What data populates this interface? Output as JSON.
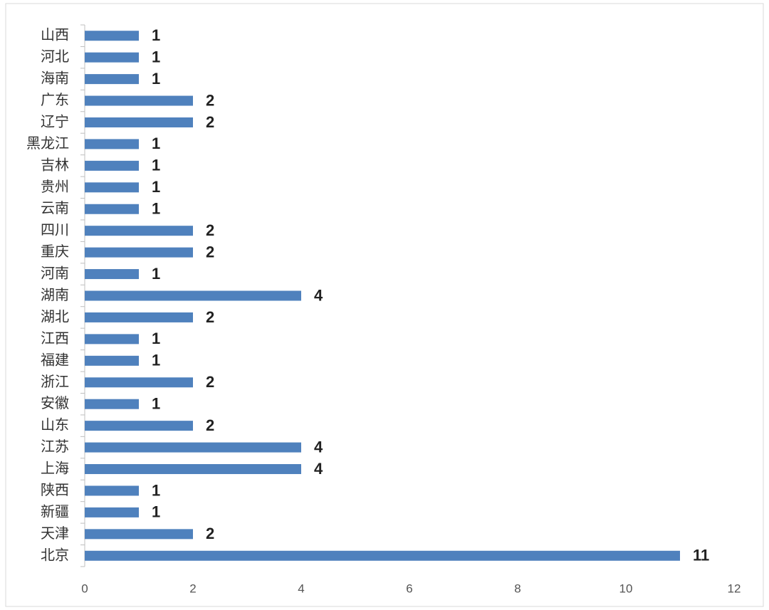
{
  "chart_data": {
    "type": "bar",
    "orientation": "horizontal",
    "categories": [
      "山西",
      "河北",
      "海南",
      "广东",
      "辽宁",
      "黑龙江",
      "吉林",
      "贵州",
      "云南",
      "四川",
      "重庆",
      "河南",
      "湖南",
      "湖北",
      "江西",
      "福建",
      "浙江",
      "安徽",
      "山东",
      "江苏",
      "上海",
      "陕西",
      "新疆",
      "天津",
      "北京"
    ],
    "values": [
      1,
      1,
      1,
      2,
      2,
      1,
      1,
      1,
      1,
      2,
      2,
      1,
      4,
      2,
      1,
      1,
      2,
      1,
      2,
      4,
      4,
      1,
      1,
      2,
      11
    ],
    "color": "#4f81bd",
    "xlim": [
      0,
      12
    ],
    "xticks": [
      0,
      2,
      4,
      6,
      8,
      10,
      12
    ],
    "grid": false
  }
}
